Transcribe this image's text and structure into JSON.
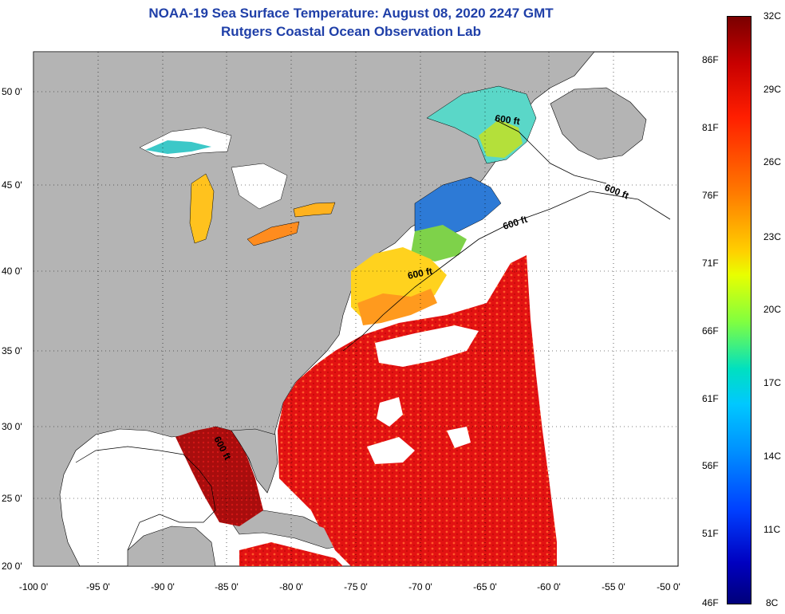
{
  "title": "NOAA-19 Sea Surface Temperature:  August 08, 2020 2247 GMT",
  "subtitle": "Rutgers Coastal Ocean Observation Lab",
  "lon_ticks": [
    "-100 0'",
    "-95 0'",
    "-90 0'",
    "-85 0'",
    "-80 0'",
    "-75 0'",
    "-70 0'",
    "-65 0'",
    "-60 0'",
    "-55 0'",
    "-50 0'"
  ],
  "lat_ticks": [
    "50 0'",
    "45 0'",
    "40 0'",
    "35 0'",
    "30 0'",
    "25 0'",
    "20 0'"
  ],
  "contour_labels": [
    "600 ft",
    "600 ft",
    "600 ft",
    "600 ft",
    "600 ft"
  ],
  "colorbar": {
    "celsius": [
      "32C",
      "29C",
      "26C",
      "23C",
      "20C",
      "17C",
      "14C",
      "11C",
      "8C"
    ],
    "fahrenheit": [
      "86F",
      "81F",
      "76F",
      "71F",
      "66F",
      "61F",
      "56F",
      "51F",
      "46F"
    ]
  },
  "colors": {
    "land": "#b4b4b4",
    "cloud": "#ffffff",
    "title": "#1f3fa8",
    "warm": "#e01010",
    "hot": "#9a0a0a"
  }
}
